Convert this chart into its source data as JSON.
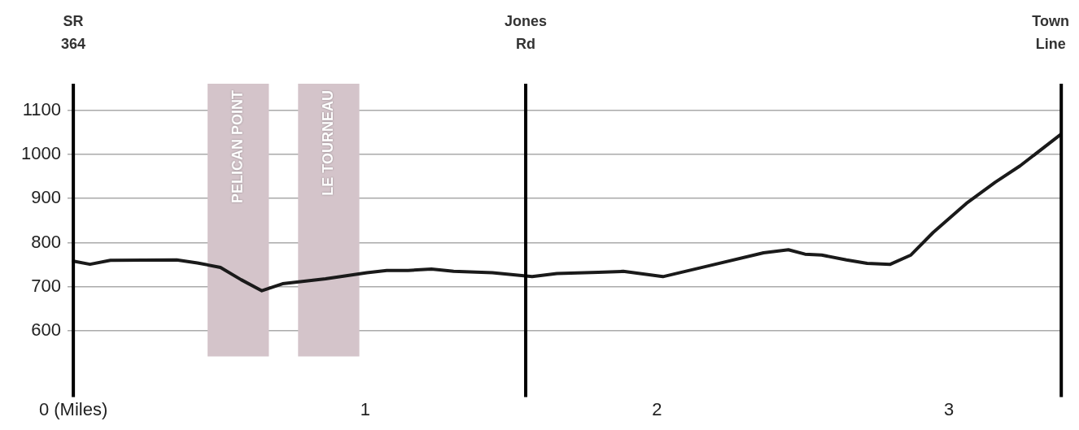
{
  "chart_data": {
    "type": "line",
    "x": [
      0,
      0.057,
      0.127,
      0.354,
      0.425,
      0.504,
      0.575,
      0.646,
      0.717,
      0.864,
      1.006,
      1.074,
      1.147,
      1.227,
      1.303,
      1.436,
      1.572,
      1.657,
      1.799,
      1.884,
      2.02,
      2.167,
      2.365,
      2.45,
      2.507,
      2.564,
      2.649,
      2.72,
      2.799,
      2.87,
      2.946,
      3.06,
      3.159,
      3.244,
      3.385
    ],
    "series": [
      {
        "color": "#1a1a1a",
        "values": [
          758,
          751,
          760,
          761,
          754,
          744,
          716,
          691,
          707,
          718,
          732,
          737,
          737,
          740,
          735,
          732,
          723,
          730,
          733,
          735,
          723,
          746,
          777,
          784,
          774,
          772,
          761,
          753,
          751,
          772,
          823,
          889,
          937,
          974,
          1046
        ]
      }
    ],
    "xlim": [
      -0.02,
      3.39
    ],
    "xticks": [
      {
        "value": 0,
        "label": "0 (Miles)"
      },
      1,
      2,
      3
    ],
    "ylim": [
      450,
      1160
    ],
    "yticks": [
      600,
      700,
      800,
      900,
      1000,
      1100
    ],
    "grid": "y",
    "marker": "none",
    "line_style": "solid",
    "legend": false,
    "ref_lines": [
      {
        "axis": "x",
        "value": 0,
        "label": "SR 364",
        "color": "#000000"
      },
      {
        "axis": "x",
        "value": 1.55,
        "label": "Jones Rd",
        "color": "#000000"
      },
      {
        "axis": "x",
        "value": 3.385,
        "label": "Town Line",
        "color": "#000000"
      }
    ],
    "bands": [
      {
        "axis": "x",
        "from": 0.46,
        "to": 0.67,
        "label": "PELICAN POINT",
        "color": "#d4c4ca"
      },
      {
        "axis": "x",
        "from": 0.77,
        "to": 0.98,
        "label": "LE TOURNEAU",
        "color": "#d4c4ca"
      }
    ]
  }
}
